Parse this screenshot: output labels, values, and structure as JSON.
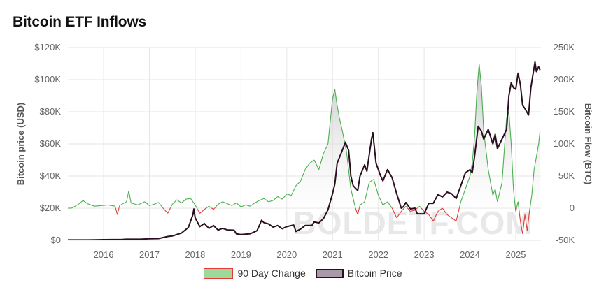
{
  "title": "Bitcoin ETF Inflows",
  "watermark": "BOLDETF.COM",
  "colors": {
    "flow_pos": "#4caf50",
    "flow_neg": "#e53935",
    "price": "#2a0f20",
    "grid": "#e6e6e6"
  },
  "chart_data": {
    "type": "line",
    "title": "Bitcoin ETF Inflows",
    "ylabel_left": "Bitcoin price (USD)",
    "ylabel_right": "Bitcoin Flow (BTC)",
    "ylim_left": [
      0,
      120000
    ],
    "ylim_right": [
      -50000,
      250000
    ],
    "left_ticks": [
      "$0",
      "$20K",
      "$40K",
      "$60K",
      "$80K",
      "$100K",
      "$120K"
    ],
    "right_ticks": [
      "-50K",
      "0",
      "50K",
      "100K",
      "150K",
      "200K",
      "250K"
    ],
    "x_ticks": [
      "2016",
      "2017",
      "2018",
      "2019",
      "2020",
      "2021",
      "2022",
      "2023",
      "2024",
      "2025"
    ],
    "xlim": [
      2015.22,
      2025.55
    ],
    "grid": true,
    "legend_position": "bottom",
    "series": [
      {
        "name": "90 Day Change",
        "axis": "right",
        "points": [
          [
            2015.22,
            0
          ],
          [
            2015.3,
            0
          ],
          [
            2015.35,
            2000
          ],
          [
            2015.45,
            6000
          ],
          [
            2015.55,
            12000
          ],
          [
            2015.65,
            7000
          ],
          [
            2015.8,
            3000
          ],
          [
            2015.95,
            4000
          ],
          [
            2016.1,
            5000
          ],
          [
            2016.25,
            3000
          ],
          [
            2016.3,
            -10000
          ],
          [
            2016.35,
            4000
          ],
          [
            2016.5,
            10000
          ],
          [
            2016.55,
            27000
          ],
          [
            2016.6,
            8000
          ],
          [
            2016.75,
            5000
          ],
          [
            2016.9,
            10000
          ],
          [
            2017.0,
            4000
          ],
          [
            2017.1,
            6000
          ],
          [
            2017.2,
            9000
          ],
          [
            2017.3,
            0
          ],
          [
            2017.4,
            -8000
          ],
          [
            2017.5,
            6000
          ],
          [
            2017.6,
            13000
          ],
          [
            2017.7,
            8000
          ],
          [
            2017.8,
            14000
          ],
          [
            2017.9,
            15000
          ],
          [
            2018.0,
            5000
          ],
          [
            2018.1,
            -8000
          ],
          [
            2018.2,
            -2000
          ],
          [
            2018.3,
            3000
          ],
          [
            2018.4,
            -2000
          ],
          [
            2018.5,
            6000
          ],
          [
            2018.6,
            10000
          ],
          [
            2018.7,
            7000
          ],
          [
            2018.8,
            4000
          ],
          [
            2018.9,
            8000
          ],
          [
            2019.0,
            2000
          ],
          [
            2019.1,
            5000
          ],
          [
            2019.2,
            3000
          ],
          [
            2019.3,
            8000
          ],
          [
            2019.4,
            12000
          ],
          [
            2019.5,
            15000
          ],
          [
            2019.6,
            10000
          ],
          [
            2019.7,
            12000
          ],
          [
            2019.8,
            18000
          ],
          [
            2019.9,
            14000
          ],
          [
            2020.0,
            22000
          ],
          [
            2020.1,
            20000
          ],
          [
            2020.2,
            35000
          ],
          [
            2020.3,
            42000
          ],
          [
            2020.4,
            60000
          ],
          [
            2020.5,
            70000
          ],
          [
            2020.6,
            75000
          ],
          [
            2020.7,
            60000
          ],
          [
            2020.8,
            85000
          ],
          [
            2020.9,
            100000
          ],
          [
            2021.0,
            170000
          ],
          [
            2021.05,
            185000
          ],
          [
            2021.1,
            160000
          ],
          [
            2021.15,
            140000
          ],
          [
            2021.2,
            125000
          ],
          [
            2021.3,
            90000
          ],
          [
            2021.4,
            30000
          ],
          [
            2021.5,
            0
          ],
          [
            2021.55,
            -10000
          ],
          [
            2021.6,
            5000
          ],
          [
            2021.7,
            10000
          ],
          [
            2021.8,
            40000
          ],
          [
            2021.9,
            45000
          ],
          [
            2022.0,
            20000
          ],
          [
            2022.1,
            5000
          ],
          [
            2022.2,
            10000
          ],
          [
            2022.3,
            0
          ],
          [
            2022.4,
            -15000
          ],
          [
            2022.5,
            -5000
          ],
          [
            2022.6,
            3000
          ],
          [
            2022.7,
            -5000
          ],
          [
            2022.8,
            -3000
          ],
          [
            2022.9,
            3000
          ],
          [
            2023.0,
            -5000
          ],
          [
            2023.1,
            -10000
          ],
          [
            2023.2,
            -20000
          ],
          [
            2023.3,
            -5000
          ],
          [
            2023.4,
            0
          ],
          [
            2023.5,
            -10000
          ],
          [
            2023.6,
            -15000
          ],
          [
            2023.7,
            -20000
          ],
          [
            2023.8,
            10000
          ],
          [
            2023.9,
            30000
          ],
          [
            2024.0,
            50000
          ],
          [
            2024.05,
            70000
          ],
          [
            2024.1,
            110000
          ],
          [
            2024.15,
            180000
          ],
          [
            2024.2,
            225000
          ],
          [
            2024.25,
            190000
          ],
          [
            2024.3,
            120000
          ],
          [
            2024.4,
            60000
          ],
          [
            2024.5,
            20000
          ],
          [
            2024.55,
            30000
          ],
          [
            2024.6,
            10000
          ],
          [
            2024.7,
            40000
          ],
          [
            2024.75,
            90000
          ],
          [
            2024.8,
            140000
          ],
          [
            2024.85,
            150000
          ],
          [
            2024.9,
            100000
          ],
          [
            2024.95,
            30000
          ],
          [
            2025.0,
            -5000
          ],
          [
            2025.05,
            10000
          ],
          [
            2025.1,
            -20000
          ],
          [
            2025.15,
            -40000
          ],
          [
            2025.2,
            -10000
          ],
          [
            2025.25,
            -35000
          ],
          [
            2025.3,
            -5000
          ],
          [
            2025.35,
            20000
          ],
          [
            2025.4,
            60000
          ],
          [
            2025.45,
            80000
          ],
          [
            2025.5,
            100000
          ],
          [
            2025.53,
            120000
          ]
        ]
      },
      {
        "name": "Bitcoin Price",
        "axis": "left",
        "points": [
          [
            2015.22,
            240
          ],
          [
            2015.5,
            260
          ],
          [
            2015.8,
            320
          ],
          [
            2016.0,
            430
          ],
          [
            2016.4,
            560
          ],
          [
            2016.5,
            700
          ],
          [
            2016.8,
            680
          ],
          [
            2017.0,
            1000
          ],
          [
            2017.2,
            1100
          ],
          [
            2017.4,
            2400
          ],
          [
            2017.5,
            2700
          ],
          [
            2017.7,
            4500
          ],
          [
            2017.85,
            8000
          ],
          [
            2017.95,
            16000
          ],
          [
            2017.97,
            19500
          ],
          [
            2018.0,
            14000
          ],
          [
            2018.1,
            8500
          ],
          [
            2018.2,
            10500
          ],
          [
            2018.3,
            7500
          ],
          [
            2018.4,
            9200
          ],
          [
            2018.5,
            6400
          ],
          [
            2018.6,
            7500
          ],
          [
            2018.7,
            6500
          ],
          [
            2018.85,
            6300
          ],
          [
            2018.9,
            4000
          ],
          [
            2019.0,
            3600
          ],
          [
            2019.2,
            4100
          ],
          [
            2019.35,
            6000
          ],
          [
            2019.45,
            12500
          ],
          [
            2019.5,
            11000
          ],
          [
            2019.6,
            10200
          ],
          [
            2019.7,
            8200
          ],
          [
            2019.8,
            9200
          ],
          [
            2019.9,
            7200
          ],
          [
            2020.0,
            8500
          ],
          [
            2020.15,
            9500
          ],
          [
            2020.2,
            5500
          ],
          [
            2020.3,
            7000
          ],
          [
            2020.4,
            9200
          ],
          [
            2020.55,
            9300
          ],
          [
            2020.6,
            11500
          ],
          [
            2020.7,
            10800
          ],
          [
            2020.8,
            13500
          ],
          [
            2020.9,
            19000
          ],
          [
            2021.0,
            29000
          ],
          [
            2021.05,
            35000
          ],
          [
            2021.1,
            48000
          ],
          [
            2021.2,
            55000
          ],
          [
            2021.28,
            61000
          ],
          [
            2021.35,
            56000
          ],
          [
            2021.4,
            40000
          ],
          [
            2021.45,
            34000
          ],
          [
            2021.55,
            31000
          ],
          [
            2021.6,
            40000
          ],
          [
            2021.7,
            47000
          ],
          [
            2021.75,
            43000
          ],
          [
            2021.85,
            63000
          ],
          [
            2021.88,
            67000
          ],
          [
            2021.95,
            48000
          ],
          [
            2022.05,
            40000
          ],
          [
            2022.1,
            37000
          ],
          [
            2022.2,
            44000
          ],
          [
            2022.3,
            39000
          ],
          [
            2022.4,
            29000
          ],
          [
            2022.5,
            20000
          ],
          [
            2022.55,
            21000
          ],
          [
            2022.6,
            23500
          ],
          [
            2022.7,
            19500
          ],
          [
            2022.8,
            20000
          ],
          [
            2022.85,
            16500
          ],
          [
            2023.0,
            16500
          ],
          [
            2023.1,
            23000
          ],
          [
            2023.2,
            23000
          ],
          [
            2023.3,
            28500
          ],
          [
            2023.4,
            27000
          ],
          [
            2023.5,
            30000
          ],
          [
            2023.6,
            29000
          ],
          [
            2023.7,
            26000
          ],
          [
            2023.8,
            34000
          ],
          [
            2023.9,
            42000
          ],
          [
            2024.0,
            44000
          ],
          [
            2024.05,
            42000
          ],
          [
            2024.1,
            52000
          ],
          [
            2024.18,
            71000
          ],
          [
            2024.25,
            68000
          ],
          [
            2024.3,
            63000
          ],
          [
            2024.4,
            69000
          ],
          [
            2024.5,
            60000
          ],
          [
            2024.55,
            66000
          ],
          [
            2024.6,
            57000
          ],
          [
            2024.7,
            63000
          ],
          [
            2024.8,
            69000
          ],
          [
            2024.85,
            90000
          ],
          [
            2024.9,
            98000
          ],
          [
            2024.95,
            95000
          ],
          [
            2025.0,
            94000
          ],
          [
            2025.05,
            104000
          ],
          [
            2025.1,
            97000
          ],
          [
            2025.15,
            84000
          ],
          [
            2025.2,
            82000
          ],
          [
            2025.28,
            78000
          ],
          [
            2025.33,
            95000
          ],
          [
            2025.38,
            104000
          ],
          [
            2025.42,
            111000
          ],
          [
            2025.45,
            105000
          ],
          [
            2025.5,
            108000
          ],
          [
            2025.53,
            106000
          ]
        ]
      }
    ]
  },
  "legend": {
    "flow_label": "90 Day Change",
    "price_label": "Bitcoin Price"
  }
}
